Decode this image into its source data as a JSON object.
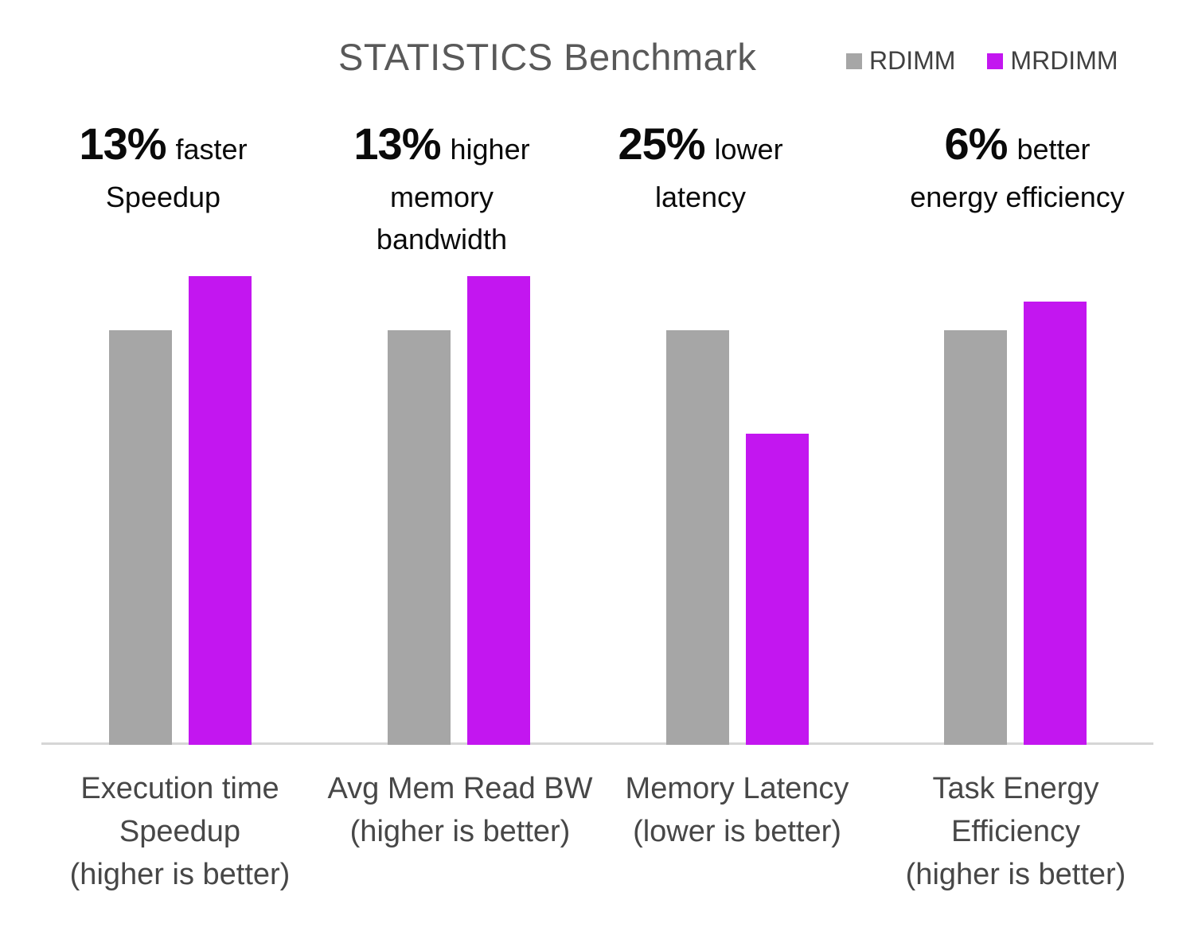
{
  "chart_data": {
    "type": "bar",
    "title": "STATISTICS Benchmark",
    "categories": [
      "Execution time\nSpeedup\n(higher is better)",
      "Avg Mem Read BW\n(higher is better)",
      "Memory Latency\n(lower is better)",
      "Task Energy\nEfficiency\n(higher is better)"
    ],
    "series": [
      {
        "name": "RDIMM",
        "color": "#A6A6A6",
        "values": [
          1.0,
          1.0,
          1.0,
          1.0
        ]
      },
      {
        "name": "MRDIMM",
        "color": "#C316F0",
        "values": [
          1.13,
          1.13,
          0.75,
          1.07
        ]
      }
    ],
    "annotations": [
      {
        "percent": "13%",
        "qualifier": "faster",
        "detail": "Speedup"
      },
      {
        "percent": "13%",
        "qualifier": "higher",
        "detail": "memory\nbandwidth"
      },
      {
        "percent": "25%",
        "qualifier": "lower",
        "detail": "latency"
      },
      {
        "percent": "6%",
        "qualifier": "better",
        "detail": "energy efficiency"
      }
    ],
    "legend_position": "top-right",
    "value_axis_visible": false,
    "gridlines": false
  }
}
